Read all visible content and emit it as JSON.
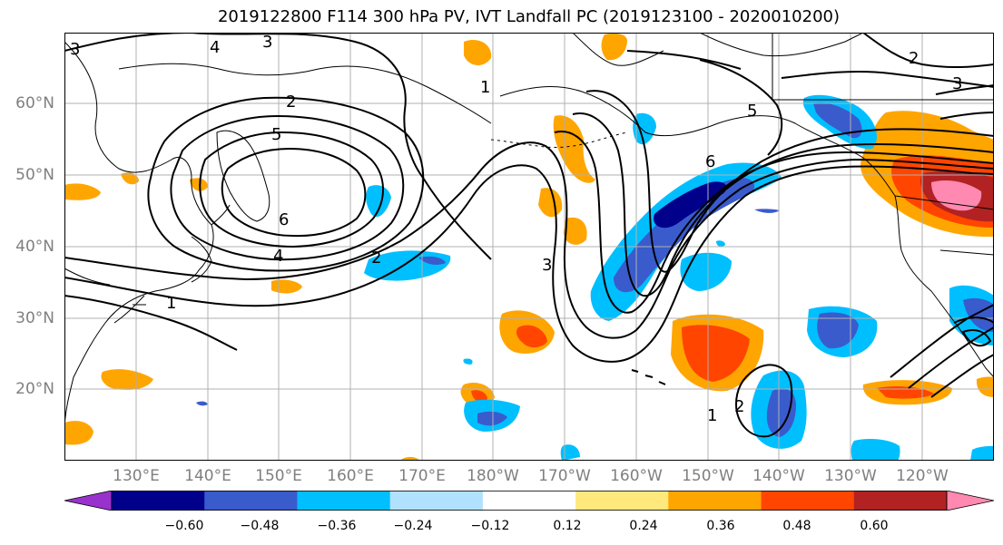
{
  "title": "2019122800 F114 300 hPa PV, IVT Landfall PC (2019123100 - 2020010200)",
  "lat_labels": [
    "60°N",
    "50°N",
    "40°N",
    "30°N",
    "20°N"
  ],
  "lon_labels": [
    "130°E",
    "140°E",
    "150°E",
    "160°E",
    "170°E",
    "180°W",
    "170°W",
    "160°W",
    "150°W",
    "140°W",
    "130°W",
    "120°W"
  ],
  "contour_labels": [
    "3",
    "4",
    "3",
    "2",
    "5",
    "6",
    "4",
    "1",
    "2",
    "3",
    "6",
    "5",
    "1",
    "2",
    "3",
    "2",
    "1"
  ],
  "colorbar": {
    "ticks": [
      "−0.60",
      "−0.48",
      "−0.36",
      "−0.24",
      "−0.12",
      "0.12",
      "0.24",
      "0.36",
      "0.48",
      "0.60"
    ],
    "colors": [
      "#9932cc",
      "#00008b",
      "#3a5bcc",
      "#00bfff",
      "#b0e2ff",
      "#ffffff",
      "#ffe87c",
      "#ffa500",
      "#ff4500",
      "#b22222",
      "#ff89b0"
    ]
  }
}
